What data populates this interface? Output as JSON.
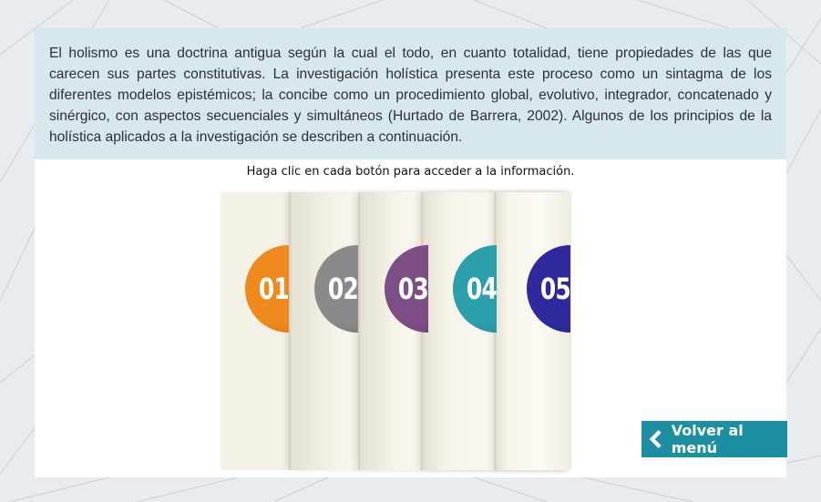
{
  "intro": {
    "text": "El holismo es una doctrina antigua según la cual el todo, en cuanto totalidad, tiene propiedades de las que carecen sus partes constitutivas. La investigación holística presenta este proceso como un sintagma de los diferentes modelos epistémicos; la concibe como un procedimiento global, evolutivo, integrador, concatenado y sinérgico, con aspectos secuenciales y simultáneos (Hurtado de Barrera, 2002). Algunos de los principios de la holística aplicados a la investigación se describen a continuación."
  },
  "instruction": "Haga clic en cada botón para acceder a la información.",
  "buttons": [
    {
      "label": "01",
      "color": "#f08a1c"
    },
    {
      "label": "02",
      "color": "#8a8a8a"
    },
    {
      "label": "03",
      "color": "#7d4d86"
    },
    {
      "label": "04",
      "color": "#2aa0ad"
    },
    {
      "label": "05",
      "color": "#2e2a9e"
    }
  ],
  "back_button": {
    "label": "Volver al menú",
    "icon": "chevron-left-icon"
  },
  "colors": {
    "intro_bg": "#d7e8ec",
    "back_bg": "#1d8fa3",
    "page_bg": "#e9ecee"
  }
}
